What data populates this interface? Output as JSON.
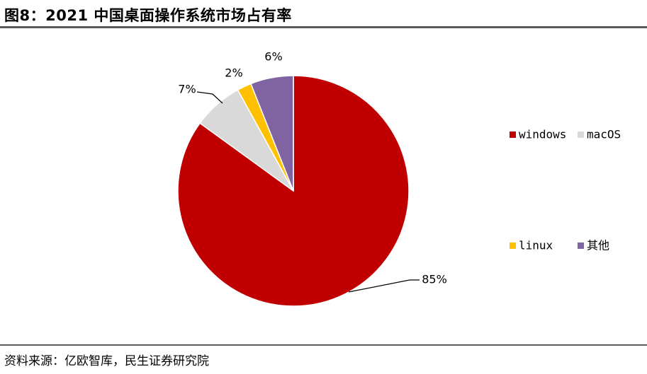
{
  "header": {
    "title": "图8：2021 中国桌面操作系统市场占有率"
  },
  "footer": {
    "source": "资料来源：亿欧智库，民生证券研究院"
  },
  "chart_data": {
    "type": "pie",
    "title": "",
    "slices": [
      {
        "name": "windows",
        "value": 85,
        "label": "85%",
        "color": "#C00000"
      },
      {
        "name": "macOS",
        "value": 7,
        "label": "7%",
        "color": "#D9D9D9"
      },
      {
        "name": "linux",
        "value": 2,
        "label": "2%",
        "color": "#FFC000"
      },
      {
        "name": "其他",
        "value": 6,
        "label": "6%",
        "color": "#8064A2"
      }
    ],
    "start": "12 o'clock",
    "direction": "clockwise",
    "legend_position": "right"
  }
}
